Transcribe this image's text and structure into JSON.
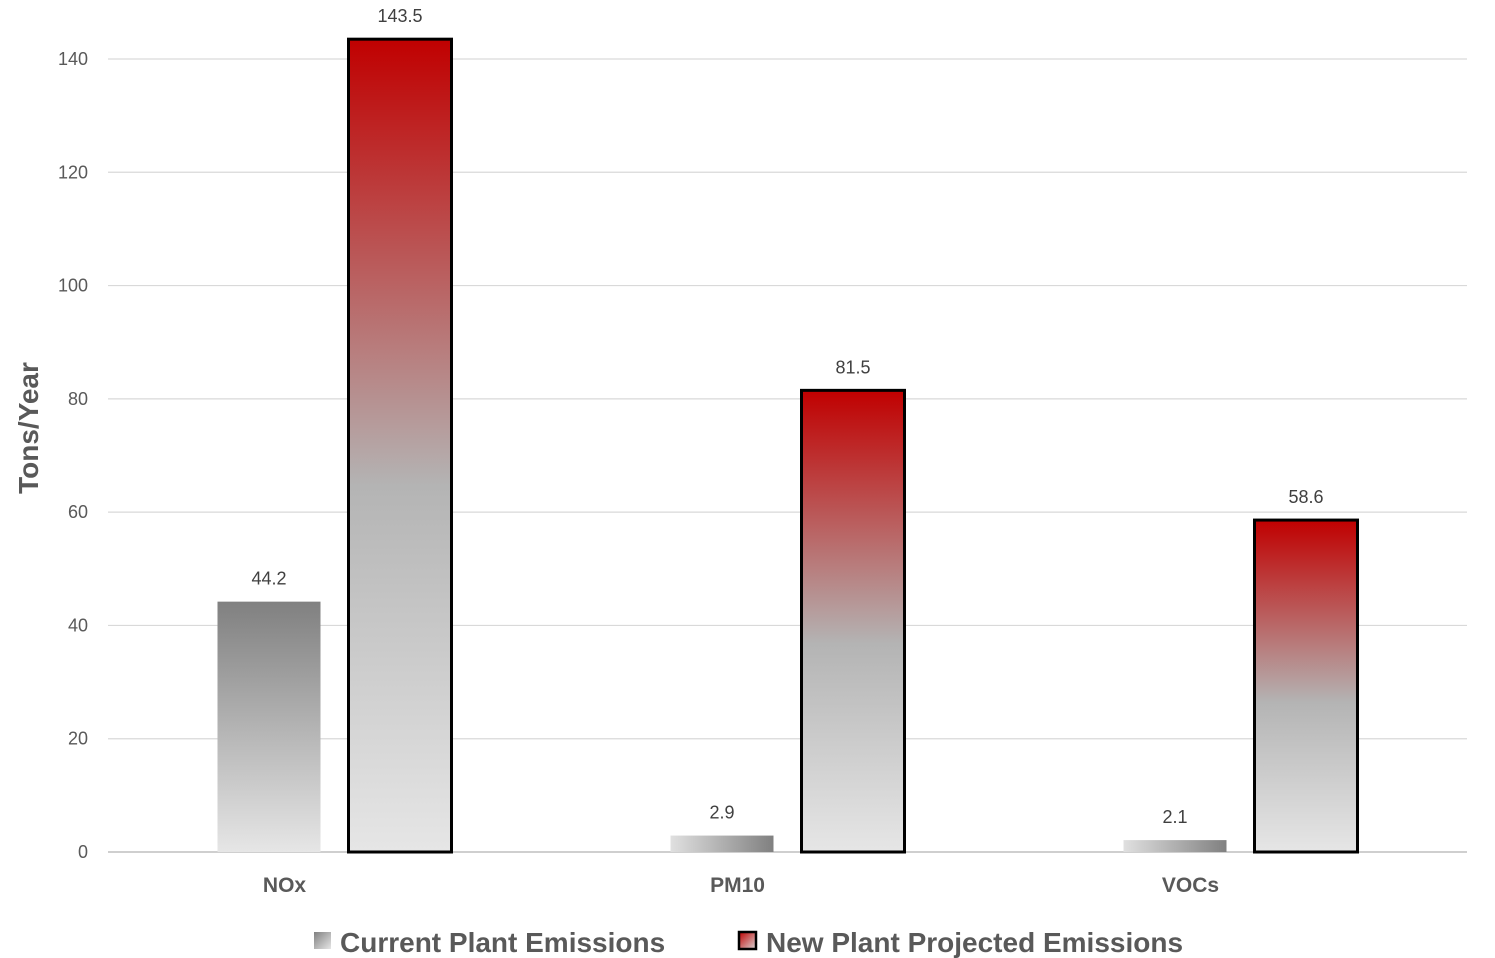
{
  "chart_data": {
    "type": "bar",
    "title": "",
    "xlabel": "",
    "ylabel": "Tons/Year",
    "ylim": [
      0,
      140
    ],
    "yticks": [
      0,
      20,
      40,
      60,
      80,
      100,
      120,
      140
    ],
    "grid": true,
    "legend_position": "bottom",
    "categories": [
      "NOx",
      "PM10",
      "VOCs"
    ],
    "series": [
      {
        "name": "Current Plant Emissions",
        "values": [
          44.2,
          2.9,
          2.1
        ],
        "labels": [
          "44.2",
          "2.9",
          "2.1"
        ],
        "color_top": "#808080",
        "color_bottom": "#e6e6e6"
      },
      {
        "name": "New Plant Projected Emissions",
        "values": [
          143.5,
          81.5,
          58.6
        ],
        "labels": [
          "143.5",
          "81.5",
          "58.6"
        ],
        "color_top": "#c00000",
        "color_bottom": "#e6e6e6",
        "outline": "#000000"
      }
    ]
  }
}
